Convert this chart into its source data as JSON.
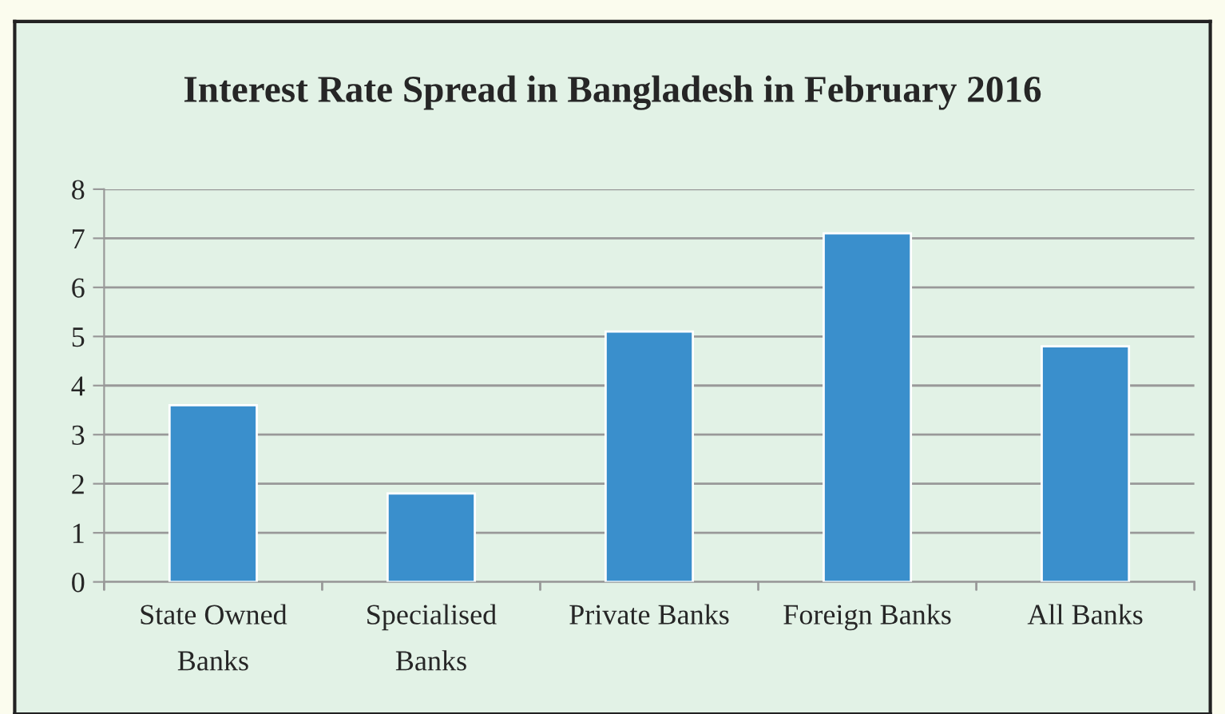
{
  "chart_data": {
    "type": "bar",
    "title": "Interest Rate Spread in Bangladesh in February 2016",
    "categories": [
      "State Owned\nBanks",
      "Specialised\nBanks",
      "Private Banks",
      "Foreign Banks",
      "All Banks"
    ],
    "values": [
      3.6,
      1.8,
      5.1,
      7.1,
      4.8
    ],
    "color": "#3a8fcc",
    "ylim": [
      0,
      8
    ],
    "yticks": [
      0,
      1,
      2,
      3,
      4,
      5,
      6,
      7,
      8
    ],
    "grid": "y",
    "legend": false
  }
}
